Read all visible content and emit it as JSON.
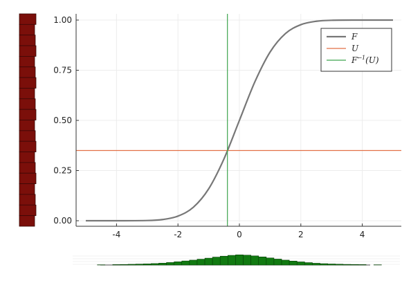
{
  "chart_data": {
    "type": "line",
    "title": "",
    "xlabel": "",
    "ylabel": "",
    "xlim": [
      -5,
      5
    ],
    "ylim": [
      0,
      1
    ],
    "grid": true,
    "legend_position": "top-right",
    "x_ticks": [
      -4,
      -2,
      0,
      2,
      4
    ],
    "x_tick_labels": [
      "-4",
      "-2",
      "0",
      "2",
      "4"
    ],
    "y_ticks": [
      0,
      0.25,
      0.5,
      0.75,
      1.0
    ],
    "y_tick_labels": [
      "0.00",
      "0.25",
      "0.50",
      "0.75",
      "1.00"
    ],
    "series": [
      {
        "name": "F",
        "legend_main": "F",
        "legend_sup": "",
        "legend_suffix": "",
        "kind": "curve",
        "color": "#777777",
        "x": [
          -5,
          -4,
          -3,
          -2.5,
          -2,
          -1.5,
          -1,
          -0.5,
          0,
          0.5,
          1,
          1.5,
          2,
          2.5,
          3,
          4,
          5
        ],
        "y": [
          0.0,
          0.0,
          0.001,
          0.006,
          0.023,
          0.067,
          0.159,
          0.309,
          0.5,
          0.691,
          0.841,
          0.933,
          0.977,
          0.994,
          0.999,
          1.0,
          1.0
        ]
      },
      {
        "name": "U",
        "legend_main": "U",
        "legend_sup": "",
        "legend_suffix": "",
        "kind": "hline",
        "color": "#e26f46",
        "value": 0.35
      },
      {
        "name": "F⁻¹(U)",
        "legend_main": "F",
        "legend_sup": "←1",
        "legend_suffix": "(U)",
        "kind": "vline",
        "color": "#3da44d",
        "value": -0.39
      }
    ],
    "marginal_y": {
      "type": "bar",
      "orientation": "horizontal",
      "color": "#7b0f0a",
      "count_bins": 20
    },
    "marginal_x": {
      "type": "bar",
      "color": "#117a11",
      "bin_centers": [
        -4.5,
        -4.0,
        -3.75,
        -3.5,
        -3.25,
        -3.0,
        -2.75,
        -2.5,
        -2.25,
        -2.0,
        -1.75,
        -1.5,
        -1.25,
        -1.0,
        -0.75,
        -0.5,
        -0.25,
        0.0,
        0.25,
        0.5,
        0.75,
        1.0,
        1.25,
        1.5,
        1.75,
        2.0,
        2.25,
        2.5,
        2.75,
        3.0,
        3.25,
        3.5,
        3.75,
        4.0,
        4.5
      ],
      "heights": [
        0.02,
        0.04,
        0.05,
        0.07,
        0.09,
        0.11,
        0.14,
        0.18,
        0.24,
        0.31,
        0.39,
        0.47,
        0.56,
        0.66,
        0.76,
        0.85,
        0.93,
        0.98,
        0.95,
        0.88,
        0.78,
        0.68,
        0.57,
        0.47,
        0.38,
        0.3,
        0.23,
        0.17,
        0.13,
        0.1,
        0.08,
        0.06,
        0.05,
        0.04,
        0.02
      ]
    }
  }
}
